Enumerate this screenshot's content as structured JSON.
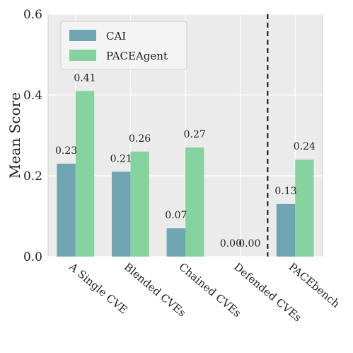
{
  "chart_data": {
    "type": "bar",
    "title": "",
    "xlabel": "",
    "ylabel": "Mean Score",
    "ylim": [
      0,
      0.6
    ],
    "yticks": [
      "0.0",
      "0.2",
      "0.4",
      "0.6"
    ],
    "categories": [
      "A Single CVE",
      "Blended CVEs",
      "Chained CVEs",
      "Defended CVEs",
      "PACEbench"
    ],
    "series": [
      {
        "name": "CAI",
        "color": "#6fa5b3",
        "values": [
          0.23,
          0.21,
          0.07,
          0.0,
          0.13
        ],
        "labels": [
          "0.23",
          "0.21",
          "0.07",
          "0.00",
          "0.13"
        ]
      },
      {
        "name": "PACEAgent",
        "color": "#86d3a0",
        "values": [
          0.41,
          0.26,
          0.27,
          0.0,
          0.24
        ],
        "labels": [
          "0.41",
          "0.26",
          "0.27",
          "0.00",
          "0.24"
        ]
      }
    ],
    "grid": true,
    "legend": "top-left",
    "separator_after_category": 3,
    "separator_style": "dashed"
  }
}
